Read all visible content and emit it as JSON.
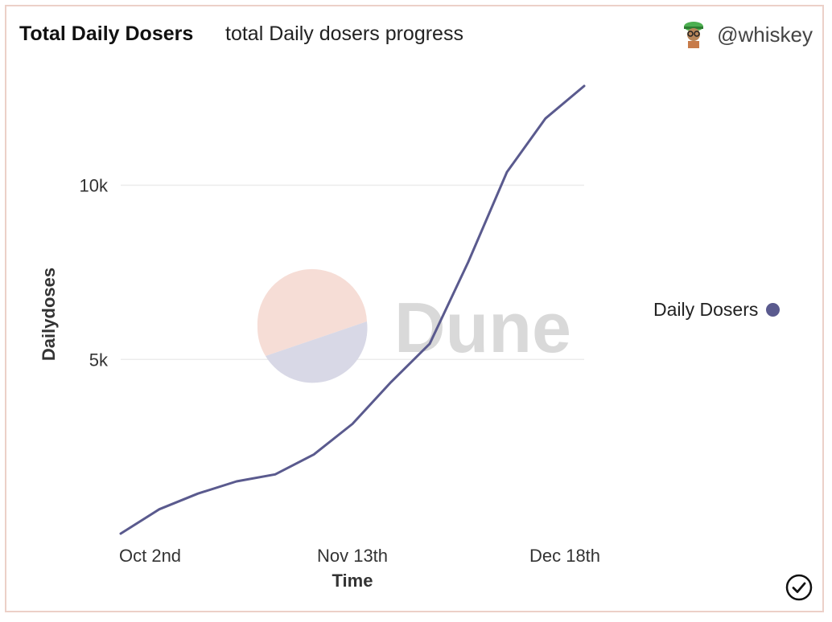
{
  "header": {
    "title": "Total Daily Dosers",
    "subtitle": "total Daily dosers progress",
    "author": "@whiskey"
  },
  "watermark": {
    "text": "Dune"
  },
  "icons": {
    "avatar": "avatar-icon",
    "status": "check-circle-icon"
  },
  "colors": {
    "series": "#5a5a8e",
    "grid": "#ececec",
    "border": "#ecd0c8",
    "watermark_top": "#f6ddd6",
    "watermark_bottom": "#d8d8e6"
  },
  "chart_data": {
    "type": "line",
    "title": "Total Daily Dosers",
    "subtitle": "total Daily dosers progress",
    "xlabel": "Time",
    "ylabel": "Dailydoses",
    "x_tick_labels": [
      "Oct 2nd",
      "Nov 13th",
      "Dec 18th"
    ],
    "x_tick_values": [
      0,
      6,
      11.5
    ],
    "y_ticks": [
      5000,
      10000
    ],
    "y_tick_labels": [
      "5k",
      "10k"
    ],
    "ylim": [
      0,
      12850
    ],
    "xlim": [
      0,
      12
    ],
    "grid": true,
    "legend_position": "right",
    "series": [
      {
        "name": "Daily Dosers",
        "x": [
          0,
          1,
          2,
          3,
          4,
          5,
          6,
          7,
          8,
          9,
          10,
          11,
          12
        ],
        "values": [
          0,
          700,
          1150,
          1500,
          1700,
          2270,
          3150,
          4350,
          5450,
          7800,
          10380,
          11920,
          12850
        ]
      }
    ]
  }
}
